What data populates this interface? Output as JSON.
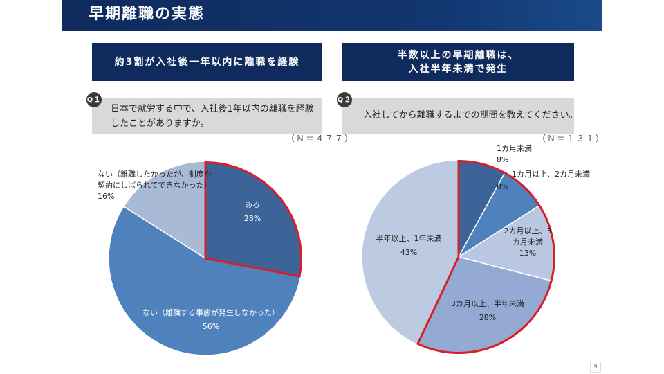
{
  "header": {
    "title": "早期離職の実態"
  },
  "left": {
    "headline": "約3割が入社後一年以内に離職を経験",
    "question_badge": "Q１",
    "question": "日本で就労する中で、入社後1年以内の離職を経験 したことがありますか。",
    "n_label": "（Ｎ＝４７７）"
  },
  "right": {
    "headline_line1": "半数以上の早期離職は、",
    "headline_line2": "入社半年未満で発生",
    "question_badge": "Q２",
    "question": "入社してから離職するまでの期間を教えてください。",
    "n_label": "（Ｎ＝１３１）"
  },
  "chart_data": [
    {
      "type": "pie",
      "title": "",
      "categories": [
        "ある",
        "ない（離職する事態が発生しなかった）",
        "ない（離職したかったが、制度や 契約にしばられてできなかった）"
      ],
      "values": [
        28,
        56,
        16
      ],
      "value_labels": [
        "28%",
        "56%",
        "16%"
      ],
      "colors": [
        "#3d6499",
        "#4f81bd",
        "#a9bad6"
      ],
      "highlight": "ある"
    },
    {
      "type": "pie",
      "title": "",
      "categories": [
        "1カ月未満",
        "1カ月以上、2カ月未満",
        "2カ月以上、3カ月未満",
        "3カ月以上、半年未満",
        "半年以上、1年未満"
      ],
      "values": [
        8,
        8,
        13,
        28,
        43
      ],
      "value_labels": [
        "8%",
        "8%",
        "13%",
        "28%",
        "43%"
      ],
      "colors": [
        "#3d6499",
        "#4f81bd",
        "#b9c8e0",
        "#94aad3",
        "#bccae2"
      ],
      "highlight": [
        "1カ月未満",
        "1カ月以上、2カ月未満",
        "2カ月以上、3カ月未満",
        "3カ月以上、半年未満"
      ]
    }
  ],
  "page_number": "9"
}
